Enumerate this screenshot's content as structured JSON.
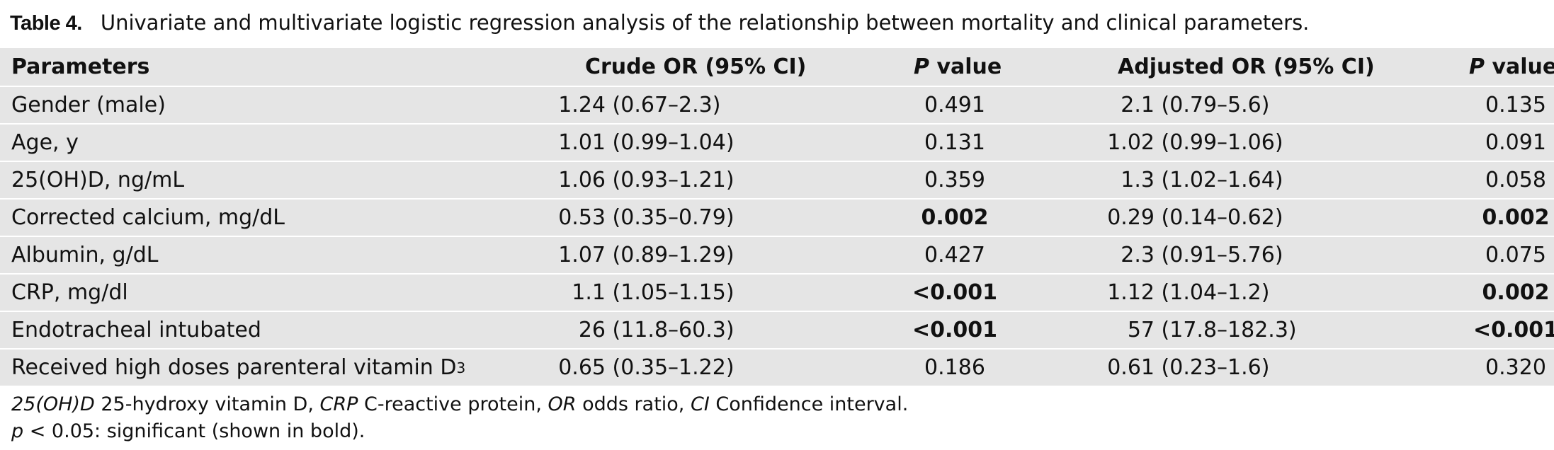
{
  "caption": {
    "label": "Table 4.",
    "text": "Univariate and multivariate logistic regression analysis of the relationship between mortality and clinical parameters."
  },
  "table": {
    "headers": {
      "parameters": "Parameters",
      "crude": "Crude OR (95% CI)",
      "p1_letter": "P",
      "p1_rest": " value",
      "adjusted": "Adjusted OR (95% CI)",
      "p2_letter": "P",
      "p2_rest": " value"
    },
    "rows": [
      {
        "parameter": "Gender (male)",
        "crude": "1.24 (0.67–2.3)",
        "p1": "0.491",
        "p1_bold": false,
        "adjusted": "2.1 (0.79–5.6)",
        "p2": "0.135",
        "p2_bold": false
      },
      {
        "parameter": "Age, y",
        "crude": "1.01 (0.99–1.04)",
        "p1": "0.131",
        "p1_bold": false,
        "adjusted": "1.02 (0.99–1.06)",
        "p2": "0.091",
        "p2_bold": false
      },
      {
        "parameter": "25(OH)D, ng/mL",
        "crude": "1.06 (0.93–1.21)",
        "p1": "0.359",
        "p1_bold": false,
        "adjusted": "1.3 (1.02–1.64)",
        "p2": "0.058",
        "p2_bold": false
      },
      {
        "parameter": "Corrected calcium, mg/dL",
        "crude": "0.53 (0.35–0.79)",
        "p1": "0.002",
        "p1_bold": true,
        "adjusted": "0.29 (0.14–0.62)",
        "p2": "0.002",
        "p2_bold": true
      },
      {
        "parameter": "Albumin, g/dL",
        "crude": "1.07 (0.89–1.29)",
        "p1": "0.427",
        "p1_bold": false,
        "adjusted": "2.3 (0.91–5.76)",
        "p2": "0.075",
        "p2_bold": false
      },
      {
        "parameter": "CRP, mg/dl",
        "crude": "1.1 (1.05–1.15)",
        "p1": "<0.001",
        "p1_bold": true,
        "adjusted": "1.12 (1.04–1.2)",
        "p2": "0.002",
        "p2_bold": true
      },
      {
        "parameter": "Endotracheal intubated",
        "crude": "26 (11.8–60.3)",
        "p1": "<0.001",
        "p1_bold": true,
        "adjusted": "57 (17.8–182.3)",
        "p2": "<0.001",
        "p2_bold": true
      },
      {
        "parameter": "Received high doses parenteral vitamin D",
        "parameter_sub": "3",
        "crude": "0.65 (0.35–1.22)",
        "p1": "0.186",
        "p1_bold": false,
        "adjusted": "0.61 (0.23–1.6)",
        "p2": "0.320",
        "p2_bold": false
      }
    ]
  },
  "footnotes": {
    "line1": [
      {
        "text": "25(OH)D",
        "italic": true
      },
      {
        "text": " 25-hydroxy vitamin D, ",
        "italic": false
      },
      {
        "text": "CRP",
        "italic": true
      },
      {
        "text": " C-reactive protein, ",
        "italic": false
      },
      {
        "text": "OR",
        "italic": true
      },
      {
        "text": " odds ratio, ",
        "italic": false
      },
      {
        "text": "CI",
        "italic": true
      },
      {
        "text": " Confidence interval.",
        "italic": false
      }
    ],
    "line2": [
      {
        "text": "p",
        "italic": true
      },
      {
        "text": " < 0.05: significant (shown in bold).",
        "italic": false
      }
    ]
  }
}
